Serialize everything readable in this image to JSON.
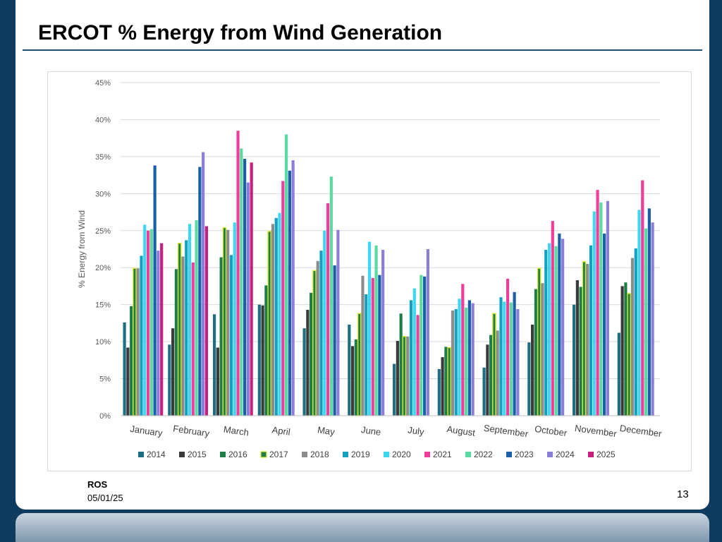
{
  "slide": {
    "title": "ERCOT % Energy from Wind Generation",
    "footer_org": "ROS",
    "footer_date": "05/01/25",
    "page_number": "13"
  },
  "chart_data": {
    "type": "bar",
    "title": "",
    "xlabel": "",
    "ylabel": "% Energy from Wind",
    "ylim": [
      0,
      45
    ],
    "yticks": [
      "0%",
      "5%",
      "10%",
      "15%",
      "20%",
      "25%",
      "30%",
      "35%",
      "40%",
      "45%"
    ],
    "grid": true,
    "legend": "bottom",
    "categories": [
      "January",
      "February",
      "March",
      "April",
      "May",
      "June",
      "July",
      "August",
      "September",
      "October",
      "November",
      "December"
    ],
    "series": [
      {
        "name": "2014",
        "color": "#1f6f82",
        "values": [
          12.6,
          9.6,
          13.7,
          15.0,
          11.8,
          12.3,
          7.0,
          6.3,
          6.5,
          9.9,
          15.0,
          11.2
        ]
      },
      {
        "name": "2015",
        "color": "#3a3a3a",
        "values": [
          9.2,
          11.8,
          9.2,
          14.9,
          14.3,
          9.4,
          10.1,
          7.9,
          9.6,
          12.3,
          18.3,
          17.5
        ]
      },
      {
        "name": "2016",
        "color": "#1e7d4a",
        "values": [
          14.8,
          19.8,
          21.4,
          17.6,
          16.6,
          10.3,
          13.8,
          9.3,
          10.9,
          17.1,
          17.4,
          18.0
        ]
      },
      {
        "name": "2017",
        "color": "#d8e82a",
        "values": [
          19.9,
          23.3,
          25.4,
          24.9,
          19.6,
          13.8,
          10.7,
          9.2,
          13.8,
          19.9,
          20.8,
          16.5
        ]
      },
      {
        "name": "2018",
        "color": "#8c8c8c",
        "values": [
          19.9,
          21.5,
          25.1,
          25.9,
          20.9,
          18.9,
          10.7,
          14.2,
          11.5,
          17.9,
          20.5,
          21.3
        ]
      },
      {
        "name": "2019",
        "color": "#14a0c0",
        "values": [
          21.6,
          23.7,
          21.7,
          26.7,
          22.3,
          16.4,
          15.6,
          14.4,
          16.0,
          22.4,
          23.0,
          22.6
        ]
      },
      {
        "name": "2020",
        "color": "#3dd8f0",
        "values": [
          25.8,
          25.9,
          26.1,
          27.4,
          25.0,
          23.5,
          17.2,
          15.8,
          15.4,
          23.3,
          27.6,
          27.8
        ]
      },
      {
        "name": "2021",
        "color": "#ef3d9b",
        "values": [
          25.0,
          20.7,
          38.5,
          31.7,
          28.7,
          18.6,
          13.6,
          17.8,
          18.5,
          26.3,
          30.5,
          31.8
        ]
      },
      {
        "name": "2022",
        "color": "#5ad9a1",
        "values": [
          25.2,
          26.4,
          36.1,
          38.0,
          32.3,
          23.0,
          19.0,
          14.6,
          15.3,
          22.9,
          28.8,
          25.3
        ]
      },
      {
        "name": "2023",
        "color": "#1a5fa6",
        "values": [
          33.8,
          33.6,
          34.7,
          33.1,
          20.3,
          19.0,
          18.8,
          15.6,
          16.7,
          24.6,
          24.6,
          28.0
        ]
      },
      {
        "name": "2024",
        "color": "#8a7fd6",
        "values": [
          22.3,
          35.6,
          31.5,
          34.5,
          25.1,
          22.4,
          22.5,
          15.2,
          14.4,
          23.9,
          29.0,
          26.1
        ]
      },
      {
        "name": "2025",
        "color": "#c81e7e",
        "values": [
          23.3,
          25.6,
          34.2,
          null,
          null,
          null,
          null,
          null,
          null,
          null,
          null,
          null
        ]
      }
    ]
  }
}
